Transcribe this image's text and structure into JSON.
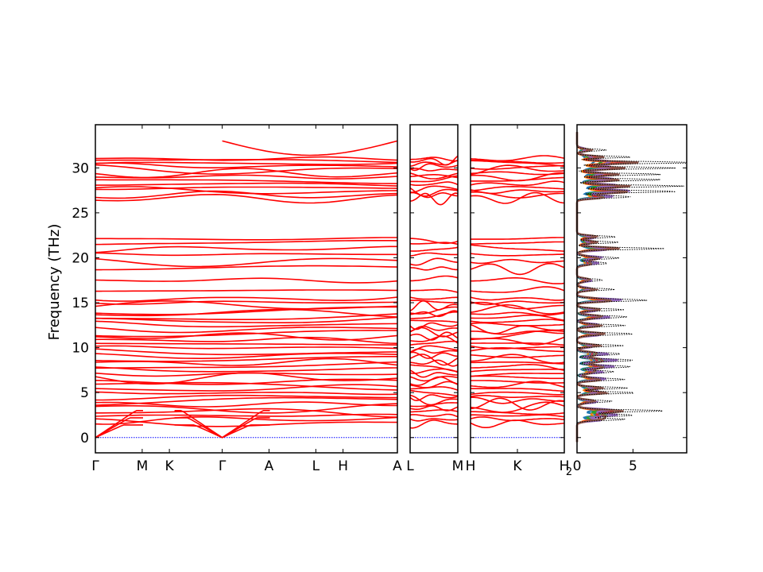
{
  "chart_data": {
    "type": "line",
    "title": "",
    "ylabel": "Frequency (THz)",
    "ylim": [
      -1.7,
      34.8
    ],
    "yticks": [
      0,
      5,
      10,
      15,
      20,
      25,
      30
    ],
    "colors": {
      "bands": "#ff0000",
      "zero_line": "#0000ff",
      "dos_total": "#000000"
    },
    "panels": [
      {
        "id": "path1",
        "labels": [
          "Γ",
          "M",
          "K",
          "Γ",
          "A",
          "L",
          "H",
          "A"
        ],
        "label_pos": [
          0,
          0.155,
          0.245,
          0.42,
          0.575,
          0.73,
          0.82,
          1.0
        ]
      },
      {
        "id": "path2",
        "labels": [
          "L",
          "M"
        ],
        "label_pos": [
          0,
          1
        ]
      },
      {
        "id": "path3",
        "labels": [
          "H",
          "K",
          "H"
        ],
        "label_pos": [
          0,
          0.5,
          1
        ]
      }
    ],
    "dos_panel": {
      "xticks": [
        0,
        5
      ],
      "xlim": [
        0,
        9.8
      ],
      "corner_label": "2",
      "series_colors": [
        "#1f77b4",
        "#ff7f0e",
        "#2ca02c",
        "#d62728",
        "#9467bd",
        "#8c564b"
      ],
      "peaks": [
        {
          "f": 2.5,
          "a": 6.5
        },
        {
          "f": 3.0,
          "a": 7.2
        },
        {
          "f": 2.0,
          "a": 4.5
        },
        {
          "f": 4.0,
          "a": 3.5
        },
        {
          "f": 5.0,
          "a": 4.6
        },
        {
          "f": 5.5,
          "a": 3.8
        },
        {
          "f": 6.5,
          "a": 5.0
        },
        {
          "f": 7.3,
          "a": 4.3
        },
        {
          "f": 7.9,
          "a": 6.2
        },
        {
          "f": 8.6,
          "a": 6.7
        },
        {
          "f": 9.3,
          "a": 5.2
        },
        {
          "f": 10.2,
          "a": 3.6
        },
        {
          "f": 11.5,
          "a": 4.8
        },
        {
          "f": 12.5,
          "a": 4.2
        },
        {
          "f": 13.4,
          "a": 5.6
        },
        {
          "f": 14.2,
          "a": 4.0
        },
        {
          "f": 15.3,
          "a": 7.6
        },
        {
          "f": 16.5,
          "a": 3.0
        },
        {
          "f": 17.5,
          "a": 2.6
        },
        {
          "f": 19.4,
          "a": 3.6
        },
        {
          "f": 20.0,
          "a": 4.3
        },
        {
          "f": 21.0,
          "a": 6.8
        },
        {
          "f": 21.7,
          "a": 3.2
        },
        {
          "f": 22.3,
          "a": 3.4
        },
        {
          "f": 26.8,
          "a": 6.0
        },
        {
          "f": 27.4,
          "a": 9.5
        },
        {
          "f": 28.0,
          "a": 8.6
        },
        {
          "f": 28.7,
          "a": 7.2
        },
        {
          "f": 29.3,
          "a": 6.4
        },
        {
          "f": 30.0,
          "a": 7.6
        },
        {
          "f": 30.6,
          "a": 9.2
        },
        {
          "f": 31.2,
          "a": 4.0
        },
        {
          "f": 32.0,
          "a": 2.2
        }
      ]
    }
  }
}
